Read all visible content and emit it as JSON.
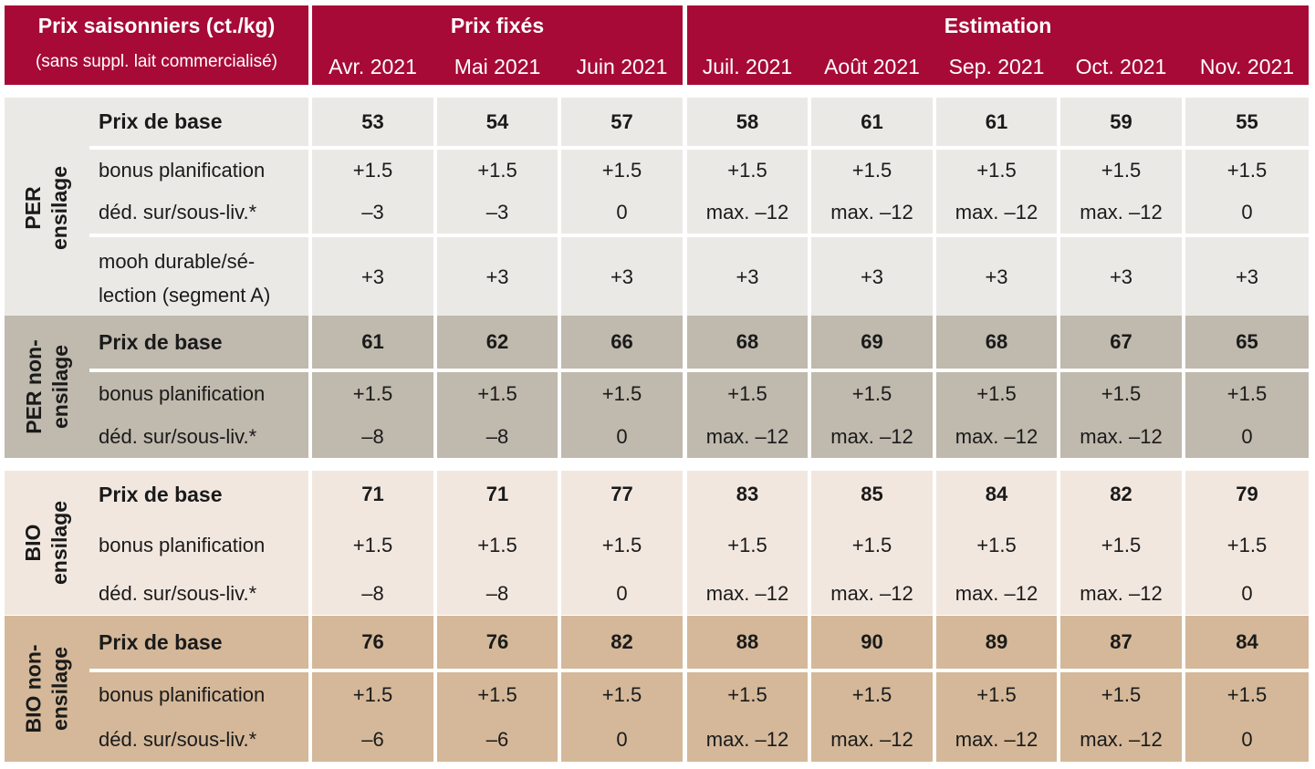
{
  "header": {
    "title": "Prix saisonniers (ct./kg)",
    "subtitle": "(sans suppl. lait commercialisé)",
    "group_fixed": "Prix fixés",
    "group_estimate": "Estimation",
    "months": [
      "Avr. 2021",
      "Mai 2021",
      "Juin 2021",
      "Juil. 2021",
      "Août 2021",
      "Sep. 2021",
      "Oct. 2021",
      "Nov. 2021"
    ]
  },
  "sections": {
    "per_ensilage": {
      "name_line1": "PER",
      "name_line2": "ensilage",
      "base_label": "Prix de base",
      "base": [
        "53",
        "54",
        "57",
        "58",
        "61",
        "61",
        "59",
        "55"
      ],
      "bonus_label": "bonus planification",
      "bonus": [
        "+1.5",
        "+1.5",
        "+1.5",
        "+1.5",
        "+1.5",
        "+1.5",
        "+1.5",
        "+1.5"
      ],
      "ded_label": "déd. sur/sous-liv.*",
      "ded": [
        "–3",
        "–3",
        "0",
        "max. –12",
        "max. –12",
        "max. –12",
        "max. –12",
        "0"
      ],
      "mooh_label_line1": "mooh durable/sé-",
      "mooh_label_line2": "lection (segment A)",
      "mooh": [
        "+3",
        "+3",
        "+3",
        "+3",
        "+3",
        "+3",
        "+3",
        "+3"
      ]
    },
    "per_non_ensilage": {
      "name_line1": "PER non-",
      "name_line2": "ensilage",
      "base_label": "Prix de base",
      "base": [
        "61",
        "62",
        "66",
        "68",
        "69",
        "68",
        "67",
        "65"
      ],
      "bonus_label": "bonus planification",
      "bonus": [
        "+1.5",
        "+1.5",
        "+1.5",
        "+1.5",
        "+1.5",
        "+1.5",
        "+1.5",
        "+1.5"
      ],
      "ded_label": "déd. sur/sous-liv.*",
      "ded": [
        "–8",
        "–8",
        "0",
        "max. –12",
        "max. –12",
        "max. –12",
        "max. –12",
        "0"
      ]
    },
    "bio_ensilage": {
      "name_line1": "BIO",
      "name_line2": "ensilage",
      "base_label": "Prix de base",
      "base": [
        "71",
        "71",
        "77",
        "83",
        "85",
        "84",
        "82",
        "79"
      ],
      "bonus_label": "bonus planification",
      "bonus": [
        "+1.5",
        "+1.5",
        "+1.5",
        "+1.5",
        "+1.5",
        "+1.5",
        "+1.5",
        "+1.5"
      ],
      "ded_label": "déd. sur/sous-liv.*",
      "ded": [
        "–8",
        "–8",
        "0",
        "max. –12",
        "max. –12",
        "max. –12",
        "max. –12",
        "0"
      ]
    },
    "bio_non_ensilage": {
      "name_line1": "BIO non-",
      "name_line2": "ensilage",
      "base_label": "Prix de base",
      "base": [
        "76",
        "76",
        "82",
        "88",
        "90",
        "89",
        "87",
        "84"
      ],
      "bonus_label": "bonus planification",
      "bonus": [
        "+1.5",
        "+1.5",
        "+1.5",
        "+1.5",
        "+1.5",
        "+1.5",
        "+1.5",
        "+1.5"
      ],
      "ded_label": "déd. sur/sous-liv.*",
      "ded": [
        "–6",
        "–6",
        "0",
        "max. –12",
        "max. –12",
        "max. –12",
        "max. –12",
        "0"
      ]
    }
  },
  "colors": {
    "header_red": "#a70a37",
    "per_ensilage_bg": "#ebe9e6",
    "per_non_ensilage_bg": "#bfb9ae",
    "bio_ensilage_bg": "#f2e7df",
    "bio_non_ensilage_bg": "#d4b899"
  }
}
